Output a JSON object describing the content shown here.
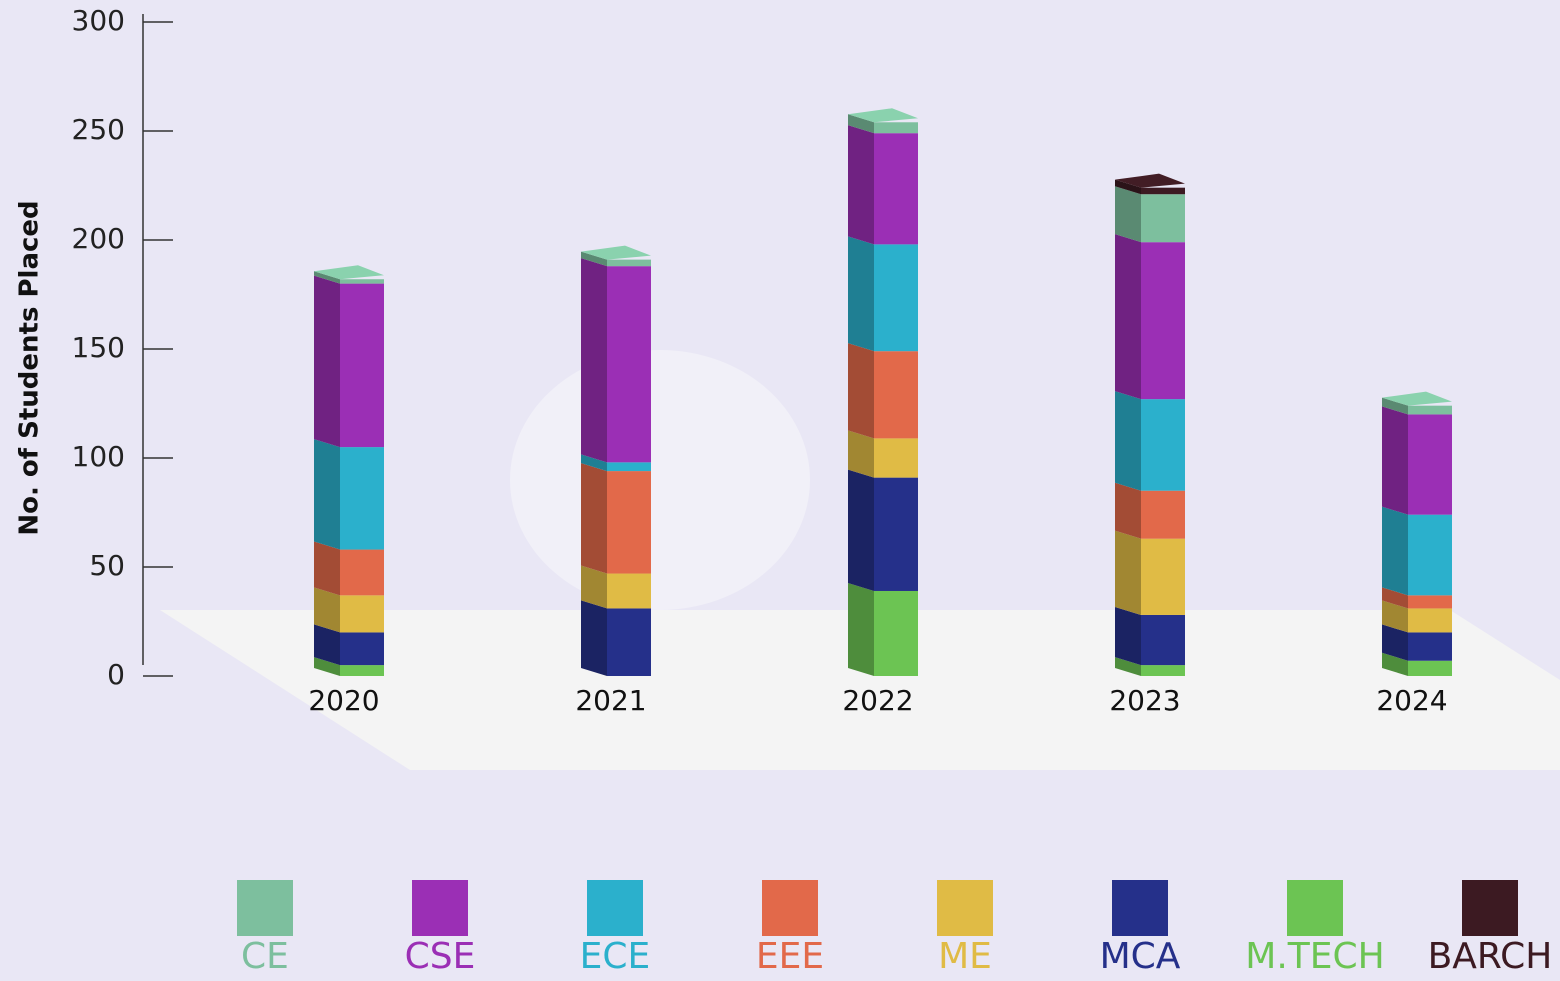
{
  "chart_data": {
    "type": "bar",
    "stacked": true,
    "y_label": "No. of Students Placed",
    "categories": [
      "2020",
      "2021",
      "2022",
      "2023",
      "2024"
    ],
    "series": [
      {
        "name": "M.TECH",
        "color": "#6cc453",
        "values": [
          5,
          0,
          39,
          5,
          7
        ]
      },
      {
        "name": "MCA",
        "color": "#25308a",
        "values": [
          15,
          31,
          52,
          23,
          13
        ]
      },
      {
        "name": "ME",
        "color": "#e0bb45",
        "values": [
          17,
          16,
          18,
          35,
          11
        ]
      },
      {
        "name": "EEE",
        "color": "#e2694a",
        "values": [
          21,
          47,
          40,
          22,
          6
        ]
      },
      {
        "name": "ECE",
        "color": "#2bb0cc",
        "values": [
          47,
          4,
          49,
          42,
          37
        ]
      },
      {
        "name": "CSE",
        "color": "#9b2fb5",
        "values": [
          75,
          90,
          51,
          72,
          46
        ]
      },
      {
        "name": "CE",
        "color": "#7dbf9e",
        "values": [
          2,
          3,
          5,
          22,
          4
        ]
      },
      {
        "name": "BARCH",
        "color": "#3c1a22",
        "values": [
          0,
          0,
          0,
          3,
          0
        ]
      }
    ],
    "legend_order": [
      "CE",
      "CSE",
      "ECE",
      "EEE",
      "ME",
      "MCA",
      "M.TECH",
      "BARCH"
    ],
    "ylim": [
      0,
      300
    ],
    "yticks": [
      0,
      50,
      100,
      150,
      200,
      250,
      300
    ]
  }
}
